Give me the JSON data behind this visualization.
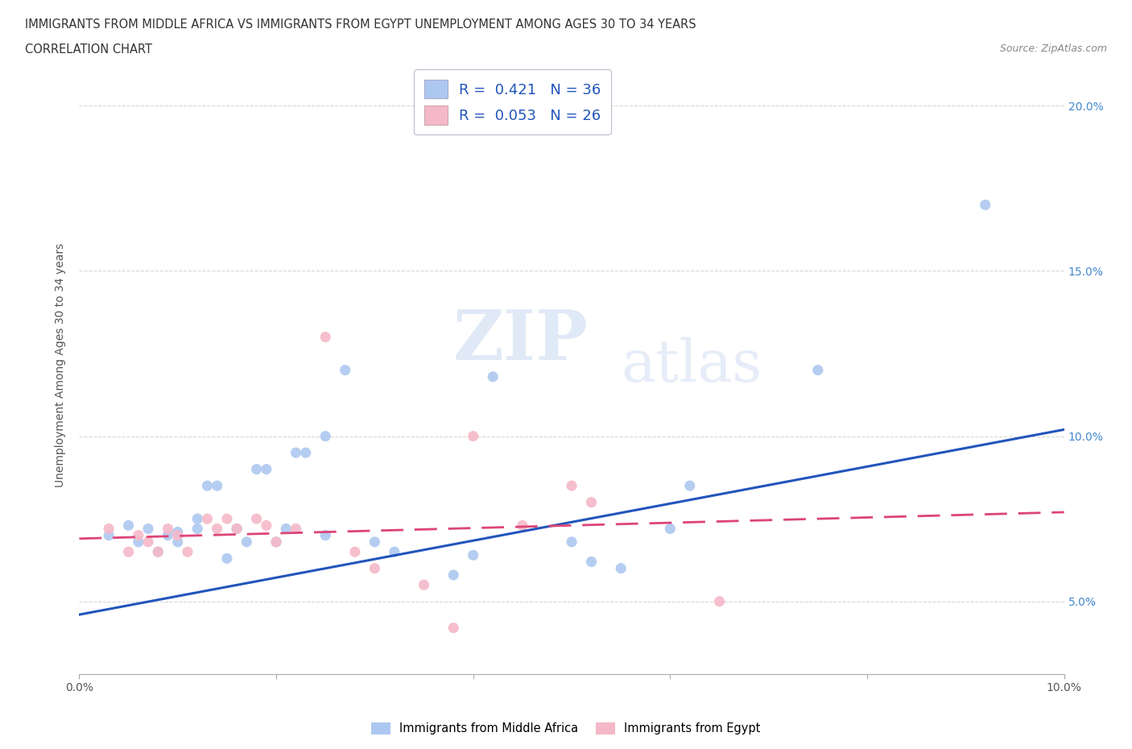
{
  "title_line1": "IMMIGRANTS FROM MIDDLE AFRICA VS IMMIGRANTS FROM EGYPT UNEMPLOYMENT AMONG AGES 30 TO 34 YEARS",
  "title_line2": "CORRELATION CHART",
  "source_text": "Source: ZipAtlas.com",
  "ylabel": "Unemployment Among Ages 30 to 34 years",
  "xlim": [
    0.0,
    0.1
  ],
  "ylim": [
    0.028,
    0.215
  ],
  "xticks": [
    0.0,
    0.02,
    0.04,
    0.06,
    0.08,
    0.1
  ],
  "xtick_labels": [
    "0.0%",
    "",
    "",
    "",
    "",
    "10.0%"
  ],
  "yticks": [
    0.05,
    0.1,
    0.15,
    0.2
  ],
  "ytick_labels": [
    "5.0%",
    "10.0%",
    "15.0%",
    "20.0%"
  ],
  "R_blue": 0.421,
  "N_blue": 36,
  "R_pink": 0.053,
  "N_pink": 26,
  "blue_color": "#adc8f0",
  "pink_color": "#f5b8c8",
  "blue_line_color": "#2255bb",
  "pink_line_color": "#dd4477",
  "watermark_top": "ZIP",
  "watermark_bot": "atlas",
  "blue_scatter_x": [
    0.003,
    0.005,
    0.006,
    0.007,
    0.008,
    0.009,
    0.01,
    0.01,
    0.012,
    0.012,
    0.013,
    0.014,
    0.015,
    0.016,
    0.017,
    0.018,
    0.019,
    0.02,
    0.021,
    0.022,
    0.023,
    0.025,
    0.025,
    0.027,
    0.03,
    0.032,
    0.038,
    0.04,
    0.042,
    0.05,
    0.052,
    0.055,
    0.06,
    0.062,
    0.075,
    0.092
  ],
  "blue_scatter_y": [
    0.07,
    0.073,
    0.068,
    0.072,
    0.065,
    0.07,
    0.071,
    0.068,
    0.075,
    0.072,
    0.085,
    0.085,
    0.063,
    0.072,
    0.068,
    0.09,
    0.09,
    0.068,
    0.072,
    0.095,
    0.095,
    0.07,
    0.1,
    0.12,
    0.068,
    0.065,
    0.058,
    0.064,
    0.118,
    0.068,
    0.062,
    0.06,
    0.072,
    0.085,
    0.12,
    0.17
  ],
  "pink_scatter_x": [
    0.003,
    0.005,
    0.006,
    0.007,
    0.008,
    0.009,
    0.01,
    0.011,
    0.013,
    0.014,
    0.015,
    0.016,
    0.018,
    0.019,
    0.02,
    0.022,
    0.025,
    0.028,
    0.03,
    0.035,
    0.038,
    0.04,
    0.045,
    0.05,
    0.052,
    0.065
  ],
  "pink_scatter_y": [
    0.072,
    0.065,
    0.07,
    0.068,
    0.065,
    0.072,
    0.07,
    0.065,
    0.075,
    0.072,
    0.075,
    0.072,
    0.075,
    0.073,
    0.068,
    0.072,
    0.13,
    0.065,
    0.06,
    0.055,
    0.042,
    0.1,
    0.073,
    0.085,
    0.08,
    0.05
  ],
  "blue_trend_x": [
    0.0,
    0.1
  ],
  "blue_trend_y": [
    0.046,
    0.102
  ],
  "pink_trend_x": [
    0.0,
    0.1
  ],
  "pink_trend_y": [
    0.069,
    0.077
  ],
  "background_color": "#ffffff",
  "grid_color": "#cccccc"
}
